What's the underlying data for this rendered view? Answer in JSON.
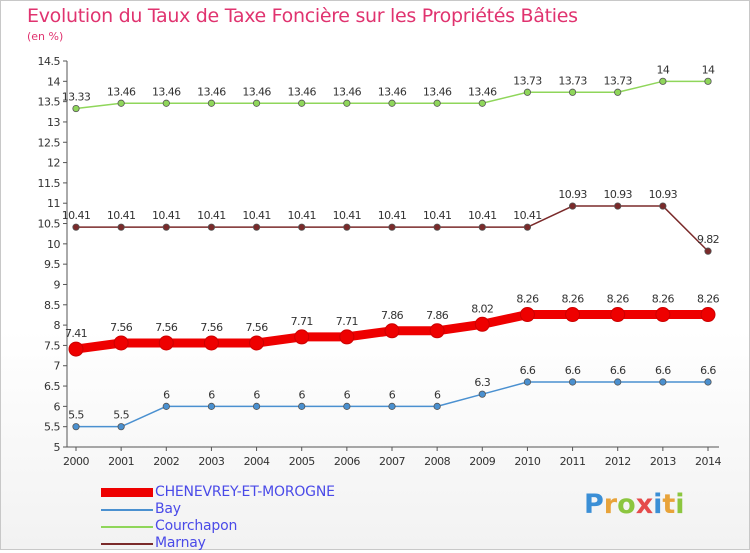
{
  "chart_data": {
    "type": "line",
    "title": "Evolution du Taux de Taxe Foncière sur les Propriétés Bâties",
    "ylabel": "(en %)",
    "xlabel": "",
    "ylim": [
      5,
      14.5
    ],
    "ytick_step": 0.5,
    "x": [
      "2000",
      "2001",
      "2002",
      "2003",
      "2004",
      "2005",
      "2006",
      "2007",
      "2008",
      "2009",
      "2010",
      "2011",
      "2012",
      "2013",
      "2014"
    ],
    "series": [
      {
        "name": "CHENEVREY-ET-MOROGNE",
        "color": "#ee0000",
        "values": [
          7.41,
          7.56,
          7.56,
          7.56,
          7.56,
          7.71,
          7.71,
          7.86,
          7.86,
          8.02,
          8.26,
          8.26,
          8.26,
          8.26,
          8.26
        ]
      },
      {
        "name": "Bay",
        "color": "#4a90d0",
        "values": [
          5.5,
          5.5,
          6,
          6,
          6,
          6,
          6,
          6,
          6,
          6.3,
          6.6,
          6.6,
          6.6,
          6.6,
          6.6
        ]
      },
      {
        "name": "Courchapon",
        "color": "#8fd65a",
        "values": [
          13.33,
          13.46,
          13.46,
          13.46,
          13.46,
          13.46,
          13.46,
          13.46,
          13.46,
          13.46,
          13.73,
          13.73,
          13.73,
          14,
          14
        ]
      },
      {
        "name": "Marnay",
        "color": "#7a2a2a",
        "values": [
          10.41,
          10.41,
          10.41,
          10.41,
          10.41,
          10.41,
          10.41,
          10.41,
          10.41,
          10.41,
          10.41,
          10.93,
          10.93,
          10.93,
          9.82
        ]
      }
    ],
    "legend_position": "bottom-left",
    "grid": false
  },
  "logo": {
    "letters": [
      "P",
      "r",
      "o",
      "x",
      "i",
      "t",
      "i"
    ]
  }
}
